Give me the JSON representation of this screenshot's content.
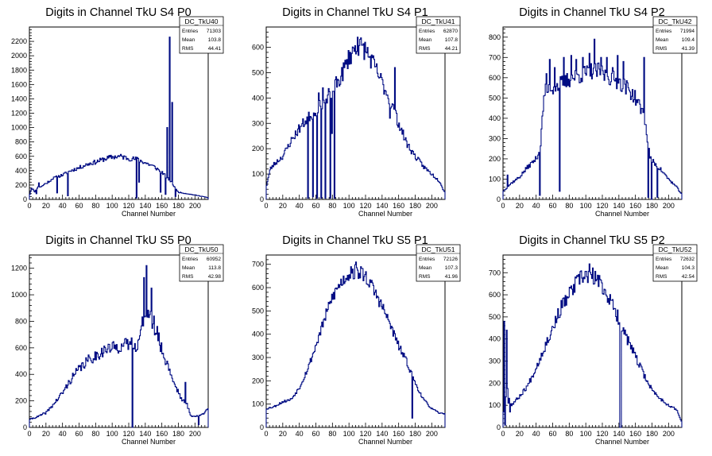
{
  "chart_data": [
    {
      "type": "histogram",
      "title": "Digits in Channel TkU S4 P0",
      "xlabel": "Channel Number",
      "xlim": [
        0,
        216
      ],
      "ylim": [
        0,
        2400
      ],
      "xticks": [
        0,
        20,
        40,
        60,
        80,
        100,
        120,
        140,
        160,
        180,
        200
      ],
      "yticks": [
        0,
        200,
        400,
        600,
        800,
        1000,
        1200,
        1400,
        1600,
        1800,
        2000,
        2200
      ],
      "stats": {
        "name": "DC_TkU40",
        "entries_label": "Entries",
        "entries": "71303",
        "mean_label": "Mean",
        "mean": "103.8",
        "rms_label": "RMS",
        "rms": "44.41"
      },
      "bin_width": 1,
      "profile": [
        [
          0,
          50
        ],
        [
          3,
          180
        ],
        [
          6,
          100
        ],
        [
          10,
          170
        ],
        [
          15,
          180
        ],
        [
          20,
          230
        ],
        [
          25,
          260
        ],
        [
          30,
          300
        ],
        [
          40,
          340
        ],
        [
          50,
          400
        ],
        [
          60,
          440
        ],
        [
          70,
          490
        ],
        [
          80,
          520
        ],
        [
          90,
          560
        ],
        [
          100,
          590
        ],
        [
          110,
          600
        ],
        [
          120,
          570
        ],
        [
          130,
          560
        ],
        [
          140,
          510
        ],
        [
          150,
          460
        ],
        [
          160,
          380
        ],
        [
          170,
          260
        ],
        [
          180,
          100
        ],
        [
          190,
          80
        ],
        [
          200,
          60
        ],
        [
          210,
          40
        ],
        [
          215,
          25
        ]
      ],
      "spikes": [
        [
          3,
          140
        ],
        [
          8,
          80
        ],
        [
          11,
          230
        ],
        [
          21,
          220
        ],
        [
          27,
          280
        ],
        [
          33,
          90
        ],
        [
          46,
          50
        ],
        [
          129,
          20
        ],
        [
          132,
          240
        ],
        [
          158,
          100
        ],
        [
          164,
          70
        ],
        [
          166,
          1000
        ],
        [
          169,
          2260
        ],
        [
          172,
          1350
        ],
        [
          173,
          200
        ],
        [
          176,
          40
        ]
      ],
      "seed": 11,
      "noise": 0.06
    },
    {
      "type": "histogram",
      "title": "Digits in Channel TkU S4 P1",
      "xlabel": "Channel Number",
      "xlim": [
        0,
        216
      ],
      "ylim": [
        0,
        680
      ],
      "xticks": [
        0,
        20,
        40,
        60,
        80,
        100,
        120,
        140,
        160,
        180,
        200
      ],
      "yticks": [
        0,
        100,
        200,
        300,
        400,
        500,
        600
      ],
      "stats": {
        "name": "DC_TkU41",
        "entries_label": "Entries",
        "entries": "62870",
        "mean_label": "Mean",
        "mean": "107.8",
        "rms_label": "RMS",
        "rms": "44.21"
      },
      "bin_width": 1,
      "profile": [
        [
          0,
          50
        ],
        [
          5,
          120
        ],
        [
          10,
          140
        ],
        [
          20,
          170
        ],
        [
          30,
          230
        ],
        [
          40,
          280
        ],
        [
          50,
          320
        ],
        [
          60,
          350
        ],
        [
          70,
          390
        ],
        [
          80,
          430
        ],
        [
          90,
          480
        ],
        [
          100,
          560
        ],
        [
          110,
          610
        ],
        [
          120,
          590
        ],
        [
          130,
          530
        ],
        [
          140,
          460
        ],
        [
          150,
          390
        ],
        [
          160,
          300
        ],
        [
          170,
          220
        ],
        [
          180,
          170
        ],
        [
          190,
          130
        ],
        [
          200,
          100
        ],
        [
          210,
          70
        ],
        [
          215,
          30
        ]
      ],
      "spikes": [
        [
          50,
          5
        ],
        [
          52,
          310
        ],
        [
          56,
          10
        ],
        [
          58,
          330
        ],
        [
          61,
          5
        ],
        [
          63,
          420
        ],
        [
          66,
          5
        ],
        [
          68,
          440
        ],
        [
          71,
          5
        ],
        [
          73,
          380
        ],
        [
          77,
          5
        ],
        [
          79,
          260
        ],
        [
          82,
          5
        ],
        [
          110,
          640
        ],
        [
          149,
          320
        ],
        [
          155,
          520
        ]
      ],
      "seed": 23,
      "noise": 0.07
    },
    {
      "type": "histogram",
      "title": "Digits in Channel TkU S4 P2",
      "xlabel": "Channel Number",
      "xlim": [
        0,
        216
      ],
      "ylim": [
        0,
        850
      ],
      "xticks": [
        0,
        20,
        40,
        60,
        80,
        100,
        120,
        140,
        160,
        180,
        200
      ],
      "yticks": [
        0,
        100,
        200,
        300,
        400,
        500,
        600,
        700,
        800
      ],
      "stats": {
        "name": "DC_TkU42",
        "entries_label": "Entries",
        "entries": "71994",
        "mean_label": "Mean",
        "mean": "109.4",
        "rms_label": "RMS",
        "rms": "41.39"
      },
      "bin_width": 1,
      "profile": [
        [
          0,
          40
        ],
        [
          10,
          80
        ],
        [
          20,
          110
        ],
        [
          30,
          160
        ],
        [
          40,
          200
        ],
        [
          45,
          250
        ],
        [
          50,
          530
        ],
        [
          60,
          550
        ],
        [
          70,
          570
        ],
        [
          80,
          590
        ],
        [
          90,
          610
        ],
        [
          100,
          620
        ],
        [
          110,
          640
        ],
        [
          120,
          620
        ],
        [
          130,
          600
        ],
        [
          140,
          580
        ],
        [
          150,
          550
        ],
        [
          160,
          500
        ],
        [
          170,
          420
        ],
        [
          178,
          200
        ],
        [
          190,
          150
        ],
        [
          200,
          100
        ],
        [
          210,
          60
        ],
        [
          215,
          30
        ]
      ],
      "spikes": [
        [
          5,
          120
        ],
        [
          44,
          20
        ],
        [
          52,
          620
        ],
        [
          56,
          690
        ],
        [
          62,
          650
        ],
        [
          68,
          40
        ],
        [
          73,
          700
        ],
        [
          82,
          710
        ],
        [
          88,
          690
        ],
        [
          96,
          700
        ],
        [
          104,
          720
        ],
        [
          110,
          790
        ],
        [
          118,
          700
        ],
        [
          125,
          700
        ],
        [
          132,
          650
        ],
        [
          138,
          710
        ],
        [
          145,
          680
        ],
        [
          170,
          700
        ],
        [
          175,
          10
        ],
        [
          179,
          0
        ],
        [
          186,
          10
        ]
      ],
      "seed": 37,
      "noise": 0.07
    },
    {
      "type": "histogram",
      "title": "Digits in Channel TkU S5 P0",
      "xlabel": "Channel Number",
      "xlim": [
        0,
        216
      ],
      "ylim": [
        0,
        1300
      ],
      "xticks": [
        0,
        20,
        40,
        60,
        80,
        100,
        120,
        140,
        160,
        180,
        200
      ],
      "yticks": [
        0,
        200,
        400,
        600,
        800,
        1000,
        1200
      ],
      "stats": {
        "name": "DC_TkU50",
        "entries_label": "Entries",
        "entries": "60952",
        "mean_label": "Mean",
        "mean": "113.8",
        "rms_label": "RMS",
        "rms": "42.98"
      },
      "bin_width": 1,
      "profile": [
        [
          0,
          60
        ],
        [
          10,
          80
        ],
        [
          20,
          110
        ],
        [
          30,
          180
        ],
        [
          40,
          260
        ],
        [
          50,
          360
        ],
        [
          60,
          440
        ],
        [
          70,
          500
        ],
        [
          80,
          540
        ],
        [
          90,
          580
        ],
        [
          100,
          600
        ],
        [
          110,
          610
        ],
        [
          120,
          630
        ],
        [
          127,
          640
        ],
        [
          130,
          600
        ],
        [
          135,
          720
        ],
        [
          140,
          900
        ],
        [
          145,
          850
        ],
        [
          150,
          760
        ],
        [
          155,
          700
        ],
        [
          160,
          580
        ],
        [
          165,
          500
        ],
        [
          170,
          420
        ],
        [
          175,
          330
        ],
        [
          180,
          270
        ],
        [
          185,
          200
        ],
        [
          190,
          180
        ],
        [
          195,
          90
        ],
        [
          200,
          80
        ],
        [
          210,
          100
        ],
        [
          215,
          150
        ]
      ],
      "spikes": [
        [
          124,
          0
        ],
        [
          138,
          1130
        ],
        [
          141,
          1220
        ],
        [
          147,
          1050
        ],
        [
          150,
          840
        ],
        [
          157,
          620
        ],
        [
          167,
          480
        ],
        [
          188,
          340
        ],
        [
          204,
          20
        ]
      ],
      "seed": 41,
      "noise": 0.08
    },
    {
      "type": "histogram",
      "title": "Digits in Channel TkU S5 P1",
      "xlabel": "Channel Number",
      "xlim": [
        0,
        216
      ],
      "ylim": [
        0,
        740
      ],
      "xticks": [
        0,
        20,
        40,
        60,
        80,
        100,
        120,
        140,
        160,
        180,
        200
      ],
      "yticks": [
        0,
        100,
        200,
        300,
        400,
        500,
        600,
        700
      ],
      "stats": {
        "name": "DC_TkU51",
        "entries_label": "Entries",
        "entries": "72126",
        "mean_label": "Mean",
        "mean": "107.3",
        "rms_label": "RMS",
        "rms": "41.96"
      },
      "bin_width": 1,
      "profile": [
        [
          0,
          80
        ],
        [
          10,
          90
        ],
        [
          20,
          110
        ],
        [
          30,
          120
        ],
        [
          40,
          170
        ],
        [
          50,
          250
        ],
        [
          60,
          350
        ],
        [
          70,
          460
        ],
        [
          80,
          560
        ],
        [
          90,
          620
        ],
        [
          100,
          660
        ],
        [
          110,
          670
        ],
        [
          120,
          650
        ],
        [
          130,
          590
        ],
        [
          140,
          520
        ],
        [
          150,
          440
        ],
        [
          160,
          350
        ],
        [
          170,
          280
        ],
        [
          180,
          190
        ],
        [
          190,
          120
        ],
        [
          200,
          80
        ],
        [
          210,
          60
        ],
        [
          215,
          60
        ]
      ],
      "spikes": [
        [
          93,
          650
        ],
        [
          102,
          690
        ],
        [
          108,
          710
        ],
        [
          114,
          690
        ],
        [
          176,
          40
        ]
      ],
      "seed": 53,
      "noise": 0.05
    },
    {
      "type": "histogram",
      "title": "Digits in Channel TkU S5 P2",
      "xlabel": "Channel Number",
      "xlim": [
        0,
        216
      ],
      "ylim": [
        0,
        780
      ],
      "xticks": [
        0,
        20,
        40,
        60,
        80,
        100,
        120,
        140,
        160,
        180,
        200
      ],
      "yticks": [
        0,
        100,
        200,
        300,
        400,
        500,
        600,
        700
      ],
      "stats": {
        "name": "DC_TkU52",
        "entries_label": "Entries",
        "entries": "72632",
        "mean_label": "Mean",
        "mean": "104.3",
        "rms_label": "RMS",
        "rms": "42.54"
      },
      "bin_width": 1,
      "profile": [
        [
          0,
          60
        ],
        [
          5,
          180
        ],
        [
          10,
          100
        ],
        [
          20,
          140
        ],
        [
          30,
          190
        ],
        [
          40,
          270
        ],
        [
          50,
          360
        ],
        [
          60,
          450
        ],
        [
          70,
          540
        ],
        [
          80,
          600
        ],
        [
          90,
          660
        ],
        [
          100,
          690
        ],
        [
          110,
          680
        ],
        [
          120,
          640
        ],
        [
          130,
          570
        ],
        [
          140,
          490
        ],
        [
          150,
          400
        ],
        [
          160,
          320
        ],
        [
          170,
          240
        ],
        [
          180,
          170
        ],
        [
          190,
          130
        ],
        [
          200,
          100
        ],
        [
          210,
          80
        ],
        [
          215,
          30
        ]
      ],
      "spikes": [
        [
          1,
          480
        ],
        [
          2,
          10
        ],
        [
          4,
          440
        ],
        [
          6,
          110
        ],
        [
          8,
          70
        ],
        [
          104,
          740
        ],
        [
          141,
          0
        ],
        [
          142,
          0
        ]
      ],
      "seed": 67,
      "noise": 0.06
    }
  ]
}
